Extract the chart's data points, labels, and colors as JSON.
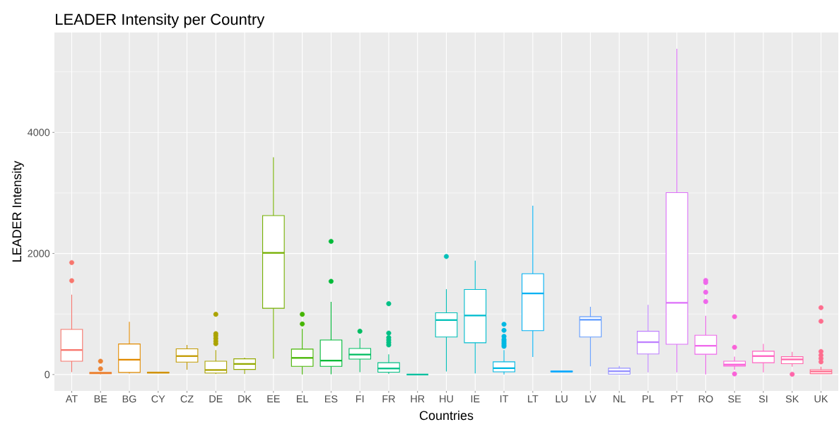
{
  "chart_data": {
    "type": "box",
    "title": "LEADER Intensity per Country",
    "xlabel": "Countries",
    "ylabel": "LEADER Intensity",
    "categories": [
      "AT",
      "BE",
      "BG",
      "CY",
      "CZ",
      "DE",
      "DK",
      "EE",
      "EL",
      "ES",
      "FI",
      "FR",
      "HR",
      "HU",
      "IE",
      "IT",
      "LT",
      "LU",
      "LV",
      "NL",
      "PL",
      "PT",
      "RO",
      "SE",
      "SI",
      "SK",
      "UK"
    ],
    "colors": [
      "#F8766D",
      "#EB8335",
      "#E18A00",
      "#D29200",
      "#C29A00",
      "#ABA300",
      "#94A900",
      "#75AF00",
      "#45B500",
      "#00BA38",
      "#00BD62",
      "#00C085",
      "#00C1A0",
      "#00C0B8",
      "#00BDCF",
      "#00B8E3",
      "#00B1F3",
      "#00A7FF",
      "#619CFF",
      "#9590FF",
      "#BE80FF",
      "#DD71FA",
      "#EF67EB",
      "#FA62D8",
      "#FF62C1",
      "#FF65AA",
      "#FE6D8E"
    ],
    "boxes": [
      {
        "low": 40,
        "q1": 220,
        "median": 405,
        "q3": 745,
        "high": 1320,
        "outliers": [
          1550,
          1850
        ]
      },
      {
        "low": 5,
        "q1": 15,
        "median": 25,
        "q3": 35,
        "high": 45,
        "outliers": [
          95,
          220
        ]
      },
      {
        "low": 15,
        "q1": 35,
        "median": 245,
        "q3": 505,
        "high": 870
      },
      {
        "low": 20,
        "q1": 25,
        "median": 33,
        "q3": 40,
        "high": 45
      },
      {
        "low": 80,
        "q1": 205,
        "median": 305,
        "q3": 425,
        "high": 490
      },
      {
        "low": 10,
        "q1": 25,
        "median": 75,
        "q3": 220,
        "high": 405,
        "outliers": [
          510,
          550,
          595,
          640,
          675,
          995
        ]
      },
      {
        "low": 10,
        "q1": 85,
        "median": 175,
        "q3": 260,
        "high": 280
      },
      {
        "low": 260,
        "q1": 1095,
        "median": 2010,
        "q3": 2625,
        "high": 3590
      },
      {
        "low": 0,
        "q1": 135,
        "median": 275,
        "q3": 420,
        "high": 755,
        "outliers": [
          835,
          995
        ]
      },
      {
        "low": 5,
        "q1": 135,
        "median": 230,
        "q3": 570,
        "high": 1200,
        "outliers": [
          1540,
          2200
        ]
      },
      {
        "low": 40,
        "q1": 255,
        "median": 330,
        "q3": 430,
        "high": 600,
        "outliers": [
          715
        ]
      },
      {
        "low": 10,
        "q1": 40,
        "median": 100,
        "q3": 195,
        "high": 335,
        "outliers": [
          490,
          530,
          570,
          610,
          685,
          1170
        ]
      },
      {
        "low": 0,
        "q1": 0,
        "median": 0,
        "q3": 0,
        "high": 0
      },
      {
        "low": 50,
        "q1": 620,
        "median": 900,
        "q3": 1020,
        "high": 1410,
        "outliers": [
          1950
        ]
      },
      {
        "low": 20,
        "q1": 525,
        "median": 975,
        "q3": 1405,
        "high": 1880
      },
      {
        "low": 0,
        "q1": 45,
        "median": 105,
        "q3": 210,
        "high": 405,
        "outliers": [
          465,
          490,
          520,
          550,
          580,
          630,
          730,
          830
        ]
      },
      {
        "low": 290,
        "q1": 725,
        "median": 1340,
        "q3": 1665,
        "high": 2790
      },
      {
        "low": 40,
        "q1": 45,
        "median": 50,
        "q3": 55,
        "high": 60
      },
      {
        "low": 135,
        "q1": 620,
        "median": 905,
        "q3": 955,
        "high": 1120
      },
      {
        "low": 5,
        "q1": 8,
        "median": 55,
        "q3": 105,
        "high": 140
      },
      {
        "low": 35,
        "q1": 340,
        "median": 535,
        "q3": 715,
        "high": 1150
      },
      {
        "low": 35,
        "q1": 500,
        "median": 1185,
        "q3": 3005,
        "high": 5380
      },
      {
        "low": 0,
        "q1": 335,
        "median": 475,
        "q3": 650,
        "high": 970,
        "outliers": [
          1205,
          1360,
          1520,
          1555
        ]
      },
      {
        "low": 80,
        "q1": 140,
        "median": 165,
        "q3": 220,
        "high": 295,
        "outliers": [
          10,
          450,
          955
        ]
      },
      {
        "low": 35,
        "q1": 195,
        "median": 305,
        "q3": 385,
        "high": 505
      },
      {
        "low": 130,
        "q1": 180,
        "median": 250,
        "q3": 295,
        "high": 375,
        "outliers": [
          5
        ]
      },
      {
        "low": 10,
        "q1": 15,
        "median": 50,
        "q3": 80,
        "high": 130,
        "outliers": [
          210,
          265,
          320,
          380,
          880,
          1105
        ]
      }
    ],
    "ylim": [
      -270,
      5650
    ],
    "yticks": [
      0,
      2000,
      4000
    ],
    "grid": true,
    "marker": "circle"
  }
}
